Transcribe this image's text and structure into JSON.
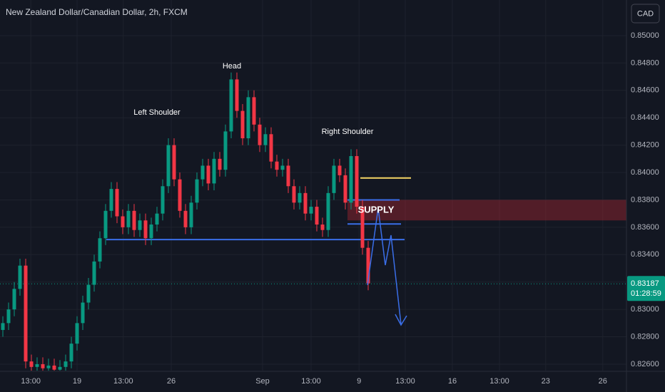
{
  "chart_data": {
    "type": "candlestick",
    "title": "New Zealand Dollar/Canadian Dollar, 2h, FXCM",
    "currency": "CAD",
    "annotations": [
      "Left Shoulder",
      "Head",
      "Right Shoulder",
      "SUPPLY"
    ],
    "last_price": 0.83187,
    "last_price_label": "0.83187",
    "countdown": "01:28:59",
    "up_color": "#089981",
    "down_color": "#f23645",
    "open": [
      0.8285,
      0.829,
      0.83,
      0.8315,
      0.8332,
      0.8262,
      0.8258,
      0.826,
      0.8257,
      0.8259,
      0.8256,
      0.8258,
      0.8262,
      0.8275,
      0.829,
      0.8305,
      0.8318,
      0.8335,
      0.8352,
      0.8372,
      0.8388,
      0.8368,
      0.836,
      0.8372,
      0.8358,
      0.8365,
      0.8352,
      0.8362,
      0.837,
      0.839,
      0.842,
      0.8395,
      0.8372,
      0.836,
      0.8378,
      0.8395,
      0.8405,
      0.8392,
      0.841,
      0.8402,
      0.843,
      0.8468,
      0.8445,
      0.8425,
      0.8455,
      0.8435,
      0.842,
      0.8428,
      0.8408,
      0.8402,
      0.8405,
      0.839,
      0.8378,
      0.8385,
      0.837,
      0.8375,
      0.8362,
      0.8358,
      0.8385,
      0.8405,
      0.8398,
      0.8378,
      0.8412,
      0.8375,
      0.8345
    ],
    "high": [
      0.8295,
      0.8305,
      0.832,
      0.8337,
      0.8337,
      0.8267,
      0.8265,
      0.8265,
      0.8264,
      0.8264,
      0.8263,
      0.8267,
      0.828,
      0.8295,
      0.831,
      0.8323,
      0.834,
      0.8357,
      0.8377,
      0.8393,
      0.8393,
      0.8373,
      0.8377,
      0.8377,
      0.837,
      0.837,
      0.8367,
      0.8375,
      0.8395,
      0.8425,
      0.8425,
      0.84,
      0.8377,
      0.8383,
      0.84,
      0.841,
      0.841,
      0.8415,
      0.8415,
      0.8435,
      0.8473,
      0.8473,
      0.845,
      0.846,
      0.846,
      0.844,
      0.8433,
      0.8433,
      0.8413,
      0.841,
      0.841,
      0.8395,
      0.839,
      0.839,
      0.838,
      0.838,
      0.8367,
      0.839,
      0.841,
      0.841,
      0.8403,
      0.8417,
      0.8417,
      0.838,
      0.835
    ],
    "low": [
      0.828,
      0.8285,
      0.8295,
      0.831,
      0.8257,
      0.8253,
      0.8253,
      0.8252,
      0.8252,
      0.8251,
      0.8251,
      0.8253,
      0.8257,
      0.827,
      0.8285,
      0.83,
      0.8313,
      0.833,
      0.8347,
      0.8367,
      0.8363,
      0.8355,
      0.8355,
      0.8353,
      0.8353,
      0.8347,
      0.8347,
      0.8357,
      0.8365,
      0.8385,
      0.839,
      0.8367,
      0.8355,
      0.8355,
      0.8373,
      0.839,
      0.8387,
      0.8387,
      0.8397,
      0.8397,
      0.8425,
      0.844,
      0.842,
      0.842,
      0.843,
      0.8415,
      0.8415,
      0.8403,
      0.8397,
      0.8397,
      0.8385,
      0.8373,
      0.8373,
      0.8365,
      0.8365,
      0.8357,
      0.8353,
      0.8353,
      0.838,
      0.8393,
      0.8373,
      0.8373,
      0.837,
      0.834,
      0.8314
    ],
    "close": [
      0.829,
      0.83,
      0.8315,
      0.8332,
      0.8262,
      0.8258,
      0.826,
      0.8257,
      0.8259,
      0.8256,
      0.8258,
      0.8262,
      0.8275,
      0.829,
      0.8305,
      0.8318,
      0.8335,
      0.8352,
      0.8372,
      0.8388,
      0.8368,
      0.836,
      0.8372,
      0.8358,
      0.8365,
      0.8352,
      0.8362,
      0.837,
      0.839,
      0.842,
      0.8395,
      0.8372,
      0.836,
      0.8378,
      0.8395,
      0.8405,
      0.8392,
      0.841,
      0.8402,
      0.843,
      0.8468,
      0.8445,
      0.8425,
      0.8455,
      0.8435,
      0.842,
      0.8428,
      0.8408,
      0.8402,
      0.8405,
      0.839,
      0.8378,
      0.8385,
      0.837,
      0.8375,
      0.8362,
      0.8358,
      0.8385,
      0.8405,
      0.8398,
      0.8378,
      0.8412,
      0.8375,
      0.8345,
      0.8319
    ],
    "neckline": 0.8351,
    "resistance": 0.8396,
    "supply_zone": [
      0.8365,
      0.838
    ],
    "xlim": [
      0,
      109.75
    ],
    "xticks": [
      {
        "value": 5.4,
        "label": "13:00"
      },
      {
        "value": 13.5,
        "label": "19"
      },
      {
        "value": 21.6,
        "label": "13:00"
      },
      {
        "value": 30,
        "label": "26"
      },
      {
        "value": 46,
        "label": "Sep"
      },
      {
        "value": 54.5,
        "label": "13:00"
      },
      {
        "value": 62.9,
        "label": "9"
      },
      {
        "value": 71,
        "label": "13:00"
      },
      {
        "value": 79.25,
        "label": "16"
      },
      {
        "value": 87.5,
        "label": "13:00"
      },
      {
        "value": 95.6,
        "label": "23"
      },
      {
        "value": 105.6,
        "label": "26"
      }
    ],
    "ylim": [
      0.82553,
      0.8526
    ],
    "yticks": [
      {
        "value": 0.85,
        "label": "0.85000"
      },
      {
        "value": 0.848,
        "label": "0.84800"
      },
      {
        "value": 0.846,
        "label": "0.84600"
      },
      {
        "value": 0.844,
        "label": "0.84400"
      },
      {
        "value": 0.842,
        "label": "0.84200"
      },
      {
        "value": 0.84,
        "label": "0.84000"
      },
      {
        "value": 0.838,
        "label": "0.83800"
      },
      {
        "value": 0.836,
        "label": "0.83600"
      },
      {
        "value": 0.834,
        "label": "0.83400"
      },
      {
        "value": 0.832,
        "label": "0.83200"
      },
      {
        "value": 0.83,
        "label": "0.83000"
      },
      {
        "value": 0.828,
        "label": "0.82800"
      },
      {
        "value": 0.826,
        "label": "0.82600"
      }
    ],
    "grid": true
  }
}
